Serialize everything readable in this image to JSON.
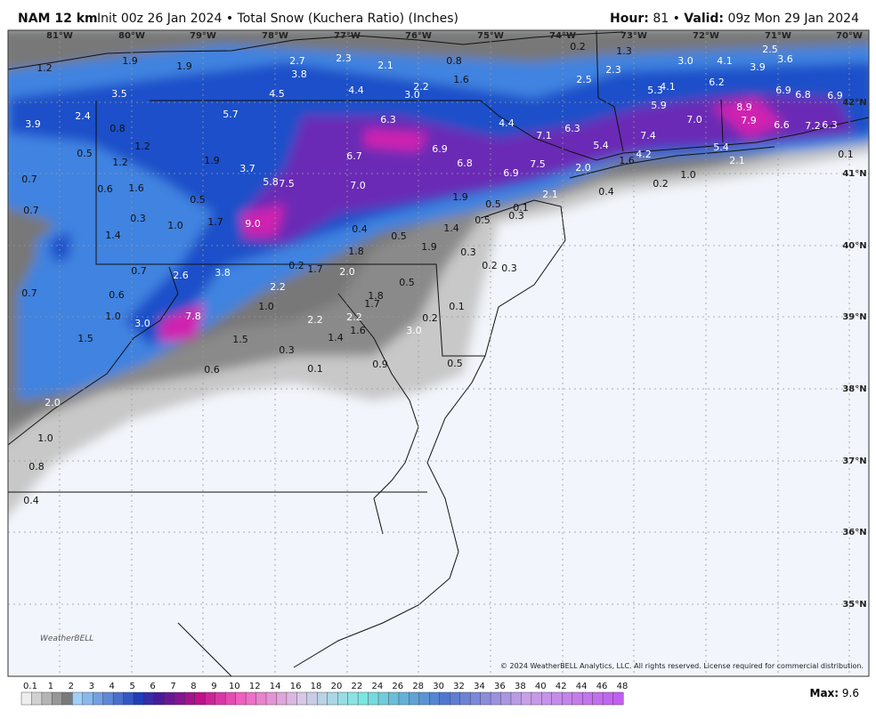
{
  "header": {
    "model": "NAM 12 km",
    "description": "Init 00z 26 Jan 2024 • Total Snow (Kuchera Ratio) (Inches)",
    "hour_label": "Hour:",
    "hour": "81 •",
    "valid_label": "Valid:",
    "valid": "09z Mon 29 Jan 2024"
  },
  "longitudes": [
    "81°W",
    "80°W",
    "79°W",
    "78°W",
    "77°W",
    "76°W",
    "75°W",
    "74°W",
    "73°W",
    "72°W",
    "71°W",
    "70°W"
  ],
  "latitudes": [
    "42°N",
    "41°N",
    "40°N",
    "39°N",
    "38°N",
    "37°N",
    "36°N",
    "35°N"
  ],
  "snow_labels": [
    "1.2",
    "1.9",
    "1.9",
    "2.7",
    "3.8",
    "2.3",
    "2.1",
    "0.8",
    "1.6",
    "0.2",
    "1.3",
    "2.3",
    "2.5",
    "3.0",
    "4.1",
    "3.9",
    "2.5",
    "3.6",
    "3.5",
    "4.5",
    "4.4",
    "2.2",
    "3.0",
    "5.3",
    "4.1",
    "6.2",
    "6.9",
    "6.8",
    "6.9",
    "5.7",
    "2.4",
    "3.9",
    "6.3",
    "4.4",
    "5.9",
    "7.0",
    "8.9",
    "7.9",
    "6.6",
    "7.2",
    "6.3",
    "0.8",
    "1.2",
    "0.5",
    "1.2",
    "7.1",
    "6.3",
    "7.4",
    "6.9",
    "6.7",
    "5.4",
    "5.4",
    "0.1",
    "1.9",
    "3.7",
    "6.8",
    "7.5",
    "6.9",
    "4.2",
    "1.6",
    "2.0",
    "2.1",
    "1.0",
    "0.7",
    "1.6",
    "0.6",
    "5.8",
    "7.5",
    "7.0",
    "0.4",
    "0.2",
    "0.5",
    "0.7",
    "2.1",
    "1.9",
    "0.5",
    "0.1",
    "0.3",
    "0.5",
    "0.3",
    "1.0",
    "1.7",
    "9.0",
    "0.4",
    "1.4",
    "1.4",
    "0.5",
    "1.9",
    "1.8",
    "0.3",
    "0.2",
    "0.3",
    "0.7",
    "2.6",
    "3.8",
    "0.2",
    "1.7",
    "2.0",
    "2.2",
    "0.7",
    "0.6",
    "1.8",
    "1.7",
    "0.5",
    "0.1",
    "1.0",
    "0.2",
    "1.0",
    "7.8",
    "2.2",
    "2.2",
    "3.0",
    "1.6",
    "3.0",
    "1.4",
    "1.5",
    "1.5",
    "0.3",
    "0.6",
    "0.1",
    "0.9",
    "0.5",
    "2.0",
    "1.0",
    "0.8",
    "0.4"
  ],
  "colorbar_ticks": [
    "0.1",
    "1",
    "2",
    "3",
    "4",
    "5",
    "6",
    "7",
    "8",
    "9",
    "10",
    "12",
    "14",
    "16",
    "18",
    "20",
    "22",
    "24",
    "26",
    "28",
    "30",
    "32",
    "34",
    "36",
    "38",
    "40",
    "42",
    "44",
    "46",
    "48"
  ],
  "max_label": "Max:",
  "max_value": "9.6",
  "copyright": "© 2024 WeatherBELL Analytics, LLC. All rights reserved. License required for commercial distribution.",
  "logo": "WeatherBELL"
}
